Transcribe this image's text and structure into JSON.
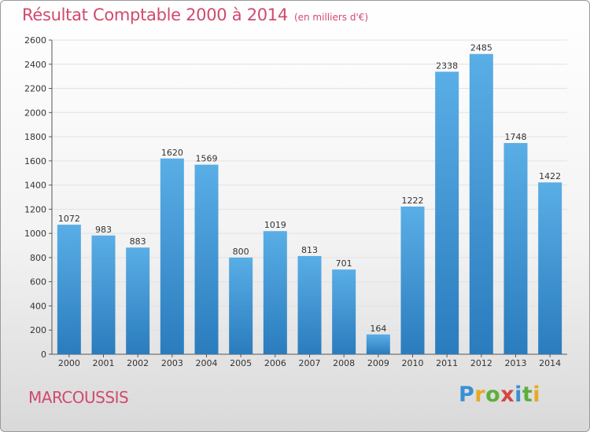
{
  "chart_data": {
    "type": "bar",
    "title": "Résultat Comptable 2000 à 2014",
    "subtitle": "(en milliers d'€)",
    "categories": [
      "2000",
      "2001",
      "2002",
      "2003",
      "2004",
      "2005",
      "2006",
      "2007",
      "2008",
      "2009",
      "2010",
      "2011",
      "2012",
      "2013",
      "2014"
    ],
    "values": [
      1072,
      983,
      883,
      1620,
      1569,
      800,
      1019,
      813,
      701,
      164,
      1222,
      2338,
      2485,
      1748,
      1422
    ],
    "ylim": [
      0,
      2600
    ],
    "yticks": [
      0,
      200,
      400,
      600,
      800,
      1000,
      1200,
      1400,
      1600,
      1800,
      2000,
      2200,
      2400,
      2600
    ],
    "grid": true,
    "xlabel": "",
    "ylabel": "",
    "colors": {
      "bar_light": "#5aaee6",
      "bar_dark": "#2a7cbd",
      "title": "#d04a6e",
      "grid": "#e2e2e2"
    }
  },
  "footer": {
    "location": "MARCOUSSIS",
    "brand_letters": [
      {
        "ch": "P",
        "color": "#3a8fd4"
      },
      {
        "ch": "r",
        "color": "#e7a824"
      },
      {
        "ch": "o",
        "color": "#5fae3c"
      },
      {
        "ch": "x",
        "color": "#d64545"
      },
      {
        "ch": "i",
        "color": "#3a8fd4"
      },
      {
        "ch": "t",
        "color": "#5fae3c"
      },
      {
        "ch": "i",
        "color": "#e7a824"
      }
    ]
  }
}
